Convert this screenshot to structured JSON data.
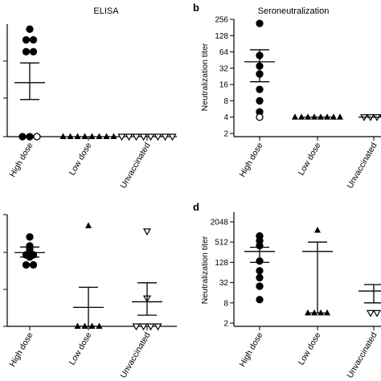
{
  "chart_data": [
    {
      "panel": "",
      "type": "scatter",
      "title": "ELISA",
      "ylabel": "",
      "yscale": "linear",
      "ylim": [
        0,
        1
      ],
      "yticks": [],
      "categories": [
        "High dose",
        "Low dose",
        "Unvaccinated"
      ],
      "points": [
        {
          "group": 0,
          "y": 0.955,
          "marker": "circle"
        },
        {
          "group": 0,
          "y": 0.86,
          "marker": "circle"
        },
        {
          "group": 0,
          "y": 0.86,
          "marker": "circle"
        },
        {
          "group": 0,
          "y": 0.755,
          "marker": "circle"
        },
        {
          "group": 0,
          "y": 0.755,
          "marker": "circle"
        },
        {
          "group": 0,
          "y": 0.0,
          "marker": "circle"
        },
        {
          "group": 0,
          "y": 0.0,
          "marker": "circle"
        },
        {
          "group": 0,
          "y": 0.0,
          "marker": "circle-open"
        },
        {
          "group": 1,
          "y": 0.0,
          "marker": "triangle",
          "count": 8
        },
        {
          "group": 2,
          "y": 0.0,
          "marker": "triangle-down-open",
          "count": 8
        }
      ],
      "summary": [
        {
          "group": 0,
          "mean": 0.48,
          "sem": [
            0.33,
            0.655
          ]
        }
      ]
    },
    {
      "panel": "b",
      "type": "scatter",
      "title": "Seroneutralization",
      "ylabel": "Neutralization titer",
      "yscale": "log2",
      "ylim": [
        2,
        256
      ],
      "yticks": [
        2,
        4,
        8,
        16,
        32,
        64,
        128,
        256
      ],
      "categories": [
        "High dose",
        "Low dose",
        "Unvaccinated"
      ],
      "points": [
        {
          "group": 0,
          "y": 215,
          "marker": "circle"
        },
        {
          "group": 0,
          "y": 55,
          "marker": "circle"
        },
        {
          "group": 0,
          "y": 35,
          "marker": "circle"
        },
        {
          "group": 0,
          "y": 25,
          "marker": "circle"
        },
        {
          "group": 0,
          "y": 13,
          "marker": "circle"
        },
        {
          "group": 0,
          "y": 8,
          "marker": "circle"
        },
        {
          "group": 0,
          "y": 5,
          "marker": "circle"
        },
        {
          "group": 0,
          "y": 4,
          "marker": "circle-open"
        },
        {
          "group": 1,
          "y": 4,
          "marker": "triangle",
          "count": 8
        },
        {
          "group": 2,
          "y": 4,
          "marker": "triangle-down-open",
          "count": 4
        }
      ],
      "summary": [
        {
          "group": 0,
          "mean": 42,
          "sem": [
            18,
            70
          ]
        },
        {
          "group": 1,
          "mean": 4,
          "sem": [
            4,
            4
          ]
        },
        {
          "group": 2,
          "mean": 4,
          "sem": [
            4,
            4
          ]
        }
      ]
    },
    {
      "panel": "",
      "type": "scatter",
      "title": "",
      "ylabel": "",
      "yscale": "linear",
      "ylim": [
        0,
        1
      ],
      "yticks": [],
      "categories": [
        "High dose",
        "Low dose",
        "Unvaccinated"
      ],
      "points": [
        {
          "group": 0,
          "y": 0.8,
          "marker": "circle"
        },
        {
          "group": 0,
          "y": 0.72,
          "marker": "circle"
        },
        {
          "group": 0,
          "y": 0.69,
          "marker": "circle"
        },
        {
          "group": 0,
          "y": 0.64,
          "marker": "circle"
        },
        {
          "group": 0,
          "y": 0.64,
          "marker": "circle"
        },
        {
          "group": 0,
          "y": 0.62,
          "marker": "circle"
        },
        {
          "group": 0,
          "y": 0.55,
          "marker": "circle"
        },
        {
          "group": 0,
          "y": 0.55,
          "marker": "circle"
        },
        {
          "group": 1,
          "y": 0.9,
          "marker": "triangle"
        },
        {
          "group": 1,
          "y": 0.0,
          "marker": "triangle",
          "count": 4
        },
        {
          "group": 2,
          "y": 0.85,
          "marker": "triangle-down-open"
        },
        {
          "group": 2,
          "y": 0.25,
          "marker": "triangle-down-open"
        },
        {
          "group": 2,
          "y": 0.0,
          "marker": "triangle-down-open",
          "count": 4
        }
      ],
      "summary": [
        {
          "group": 0,
          "mean": 0.66,
          "sem": [
            0.62,
            0.71
          ]
        },
        {
          "group": 1,
          "mean": 0.17,
          "sem": [
            0.0,
            0.35
          ]
        },
        {
          "group": 2,
          "mean": 0.22,
          "sem": [
            0.1,
            0.39
          ]
        }
      ]
    },
    {
      "panel": "d",
      "type": "scatter",
      "title": "",
      "ylabel": "Neutralization titer",
      "yscale": "log2",
      "ylim": [
        2,
        2048
      ],
      "yticks": [
        2,
        8,
        32,
        128,
        512,
        2048
      ],
      "categories": [
        "High dose",
        "Low dose",
        "Unvaccinated"
      ],
      "points": [
        {
          "group": 0,
          "y": 780,
          "marker": "circle"
        },
        {
          "group": 0,
          "y": 560,
          "marker": "circle"
        },
        {
          "group": 0,
          "y": 400,
          "marker": "circle"
        },
        {
          "group": 0,
          "y": 140,
          "marker": "circle"
        },
        {
          "group": 0,
          "y": 72,
          "marker": "circle"
        },
        {
          "group": 0,
          "y": 45,
          "marker": "circle"
        },
        {
          "group": 0,
          "y": 25,
          "marker": "circle"
        },
        {
          "group": 0,
          "y": 10,
          "marker": "circle"
        },
        {
          "group": 1,
          "y": 1150,
          "marker": "triangle"
        },
        {
          "group": 1,
          "y": 4,
          "marker": "triangle",
          "count": 4
        },
        {
          "group": 2,
          "y": 4,
          "marker": "triangle-down-open",
          "count": 2
        }
      ],
      "summary": [
        {
          "group": 0,
          "mean": 270,
          "sem": [
            128,
            360
          ]
        },
        {
          "group": 1,
          "mean": 270,
          "sem": [
            4,
            512
          ]
        },
        {
          "group": 2,
          "mean": 18,
          "sem": [
            8,
            28
          ]
        }
      ]
    }
  ]
}
